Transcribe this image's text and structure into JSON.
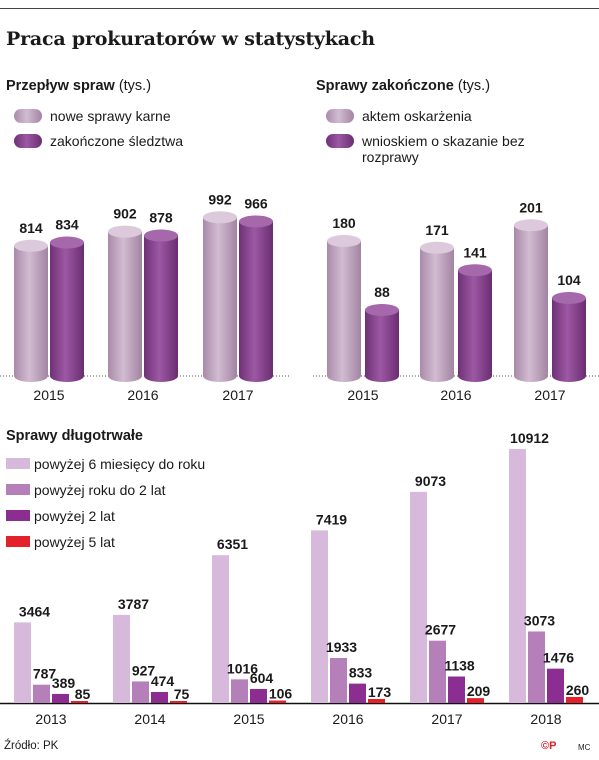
{
  "title": "Praca prokuratorów w statystykach",
  "colors": {
    "light_violet": "#c7aec7",
    "violet": "#8f4a96",
    "pale_lilac": "#d7b9dc",
    "lilac": "#b57fba",
    "purple": "#8c2e91",
    "red": "#e3212b"
  },
  "panels": {
    "flow": {
      "title": "Przepływ spraw",
      "unit": "(tys.)",
      "legend": [
        "nowe sprawy karne",
        "zakończone śledztwa"
      ]
    },
    "finished": {
      "title": "Sprawy zakończone",
      "unit": "(tys.)",
      "legend": [
        "aktem oskarżenia",
        "wnioskiem o skazanie bez rozprawy"
      ]
    },
    "long": {
      "title": "Sprawy długotrwałe",
      "legend": [
        "powyżej 6 miesięcy do roku",
        "powyżej roku do 2 lat",
        "powyżej 2 lat",
        "powyżej 5 lat"
      ]
    }
  },
  "chart_data": [
    {
      "type": "bar",
      "title": "Przepływ spraw (tys.)",
      "categories": [
        "2015",
        "2016",
        "2017"
      ],
      "series": [
        {
          "name": "nowe sprawy karne",
          "values": [
            814,
            902,
            992
          ]
        },
        {
          "name": "zakończone śledztwa",
          "values": [
            834,
            878,
            966
          ]
        }
      ],
      "style": "cylinder",
      "legend": "top-left",
      "grid": false
    },
    {
      "type": "bar",
      "title": "Sprawy zakończone (tys.)",
      "categories": [
        "2015",
        "2016",
        "2017"
      ],
      "series": [
        {
          "name": "aktem oskarżenia",
          "values": [
            180,
            171,
            201
          ]
        },
        {
          "name": "wnioskiem o skazanie bez rozprawy",
          "values": [
            88,
            141,
            104
          ]
        }
      ],
      "style": "cylinder",
      "legend": "top-left",
      "grid": false
    },
    {
      "type": "bar",
      "title": "Sprawy długotrwałe",
      "categories": [
        "2013",
        "2014",
        "2015",
        "2016",
        "2017",
        "2018"
      ],
      "series": [
        {
          "name": "powyżej 6 miesięcy do roku",
          "values": [
            3464,
            3787,
            6351,
            7419,
            9073,
            10912
          ]
        },
        {
          "name": "powyżej roku do 2 lat",
          "values": [
            787,
            927,
            1016,
            1933,
            2677,
            3073
          ]
        },
        {
          "name": "powyżej 2 lat",
          "values": [
            389,
            474,
            604,
            833,
            1138,
            1476
          ]
        },
        {
          "name": "powyżej 5 lat",
          "values": [
            85,
            75,
            106,
            173,
            209,
            260
          ]
        }
      ],
      "legend": "top-left",
      "grid": false
    }
  ],
  "footer": {
    "source": "Źródło: PK",
    "logo": "©P",
    "author": "MC"
  }
}
